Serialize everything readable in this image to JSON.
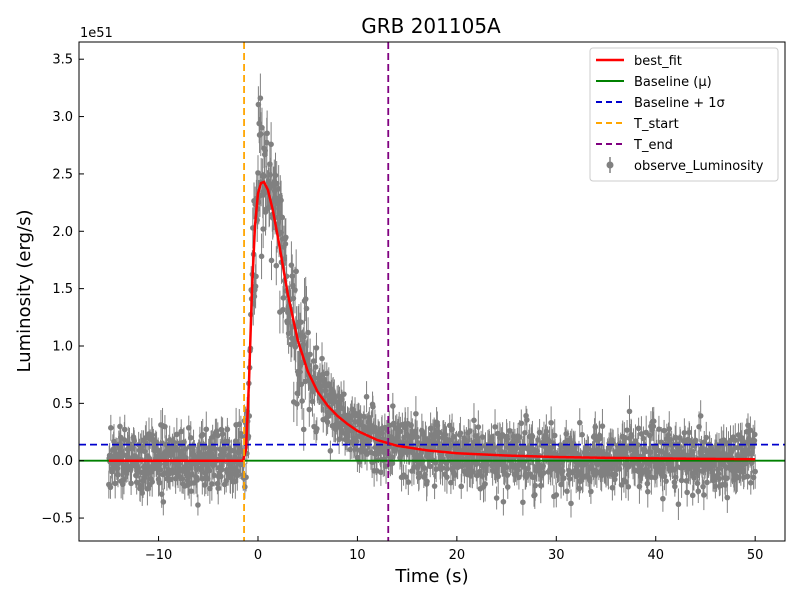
{
  "chart_data": {
    "type": "scatter",
    "title": "GRB 201105A",
    "xlabel": "Time (s)",
    "ylabel": "Luminosity (erg/s)",
    "y_offset_label": "1e51",
    "xlim": [
      -18,
      53
    ],
    "ylim": [
      -0.7,
      3.65
    ],
    "xticks": [
      -10,
      0,
      10,
      20,
      30,
      40,
      50
    ],
    "xtick_labels": [
      "−10",
      "0",
      "10",
      "20",
      "30",
      "40",
      "50"
    ],
    "yticks": [
      -0.5,
      0.0,
      0.5,
      1.0,
      1.5,
      2.0,
      2.5,
      3.0,
      3.5
    ],
    "ytick_labels": [
      "−0.5",
      "0.0",
      "0.5",
      "1.0",
      "1.5",
      "2.0",
      "2.5",
      "3.0",
      "3.5"
    ],
    "grid": false,
    "legend_position": "top-right",
    "observation": {
      "name": "observe_Luminosity",
      "color": "#808080",
      "x_range": [
        -15,
        50
      ],
      "baseline_noise_sigma": 0.13,
      "typical_error": 0.12,
      "peak_time": 0.5,
      "peak_value": 2.55,
      "max_observed": 3.3
    },
    "best_fit": {
      "name": "best_fit",
      "color": "#ff0000",
      "x": [
        -15,
        -1.5,
        -1.2,
        -0.9,
        -0.6,
        -0.3,
        0.0,
        0.3,
        0.6,
        1.0,
        1.5,
        2.0,
        3.0,
        4.0,
        5.0,
        6.0,
        7.0,
        8.0,
        9.0,
        10.0,
        12.0,
        14.0,
        17.0,
        20.0,
        25.0,
        30.0,
        35.0,
        40.0,
        45.0,
        50.0
      ],
      "y": [
        0.0,
        0.0,
        0.1,
        0.7,
        1.5,
        2.05,
        2.33,
        2.42,
        2.43,
        2.36,
        2.18,
        1.95,
        1.45,
        1.05,
        0.78,
        0.6,
        0.48,
        0.39,
        0.32,
        0.26,
        0.18,
        0.13,
        0.09,
        0.065,
        0.045,
        0.032,
        0.025,
        0.02,
        0.016,
        0.013
      ]
    },
    "baseline": {
      "name": "Baseline (μ)",
      "value": 0.0,
      "color": "#008000"
    },
    "baseline_sigma": {
      "name": "Baseline + 1σ",
      "value": 0.14,
      "color": "#0000cd"
    },
    "t_start": {
      "name": "T_start",
      "value": -1.4,
      "color": "#ffa500"
    },
    "t_end": {
      "name": "T_end",
      "value": 13.1,
      "color": "#800080"
    },
    "legend_entries": [
      "best_fit",
      "Baseline (μ)",
      "Baseline + 1σ",
      "T_start",
      "T_end",
      "observe_Luminosity"
    ]
  }
}
